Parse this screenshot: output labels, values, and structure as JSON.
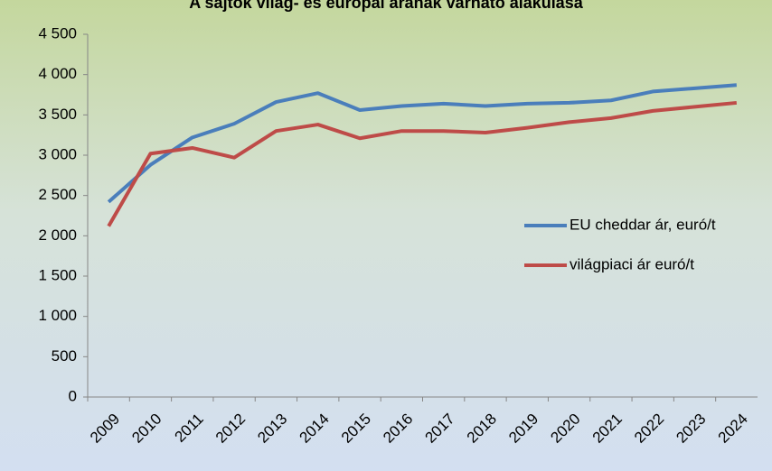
{
  "chart_data": {
    "type": "line",
    "title": "A sajtók világ- és európai árának várható alakulása",
    "categories": [
      "2009",
      "2010",
      "2011",
      "2012",
      "2013",
      "2014",
      "2015",
      "2016",
      "2017",
      "2018",
      "2019",
      "2020",
      "2021",
      "2022",
      "2023",
      "2024"
    ],
    "series": [
      {
        "name": "EU cheddar ár, euró/t",
        "color": "#4a7ebb",
        "values": [
          2420,
          2880,
          3220,
          3390,
          3660,
          3770,
          3560,
          3610,
          3640,
          3610,
          3640,
          3650,
          3680,
          3790,
          3830,
          3870
        ]
      },
      {
        "name": "világpiaci ár euró/t",
        "color": "#be4b48",
        "values": [
          2120,
          3020,
          3090,
          2970,
          3300,
          3380,
          3210,
          3300,
          3300,
          3280,
          3340,
          3410,
          3460,
          3550,
          3600,
          3650
        ]
      }
    ],
    "ylim": [
      0,
      4500
    ],
    "yticks": [
      0,
      500,
      {
        "value": 1000,
        "label": "1 000"
      },
      {
        "value": 1500,
        "label": "1 500"
      },
      {
        "value": 2000,
        "label": "2 000"
      },
      {
        "value": 2500,
        "label": "2 500"
      },
      {
        "value": 3000,
        "label": "3 000"
      },
      {
        "value": 3500,
        "label": "3 500"
      },
      {
        "value": 4000,
        "label": "4 000"
      },
      {
        "value": 4500,
        "label": "4 500"
      }
    ],
    "legend": "right"
  }
}
